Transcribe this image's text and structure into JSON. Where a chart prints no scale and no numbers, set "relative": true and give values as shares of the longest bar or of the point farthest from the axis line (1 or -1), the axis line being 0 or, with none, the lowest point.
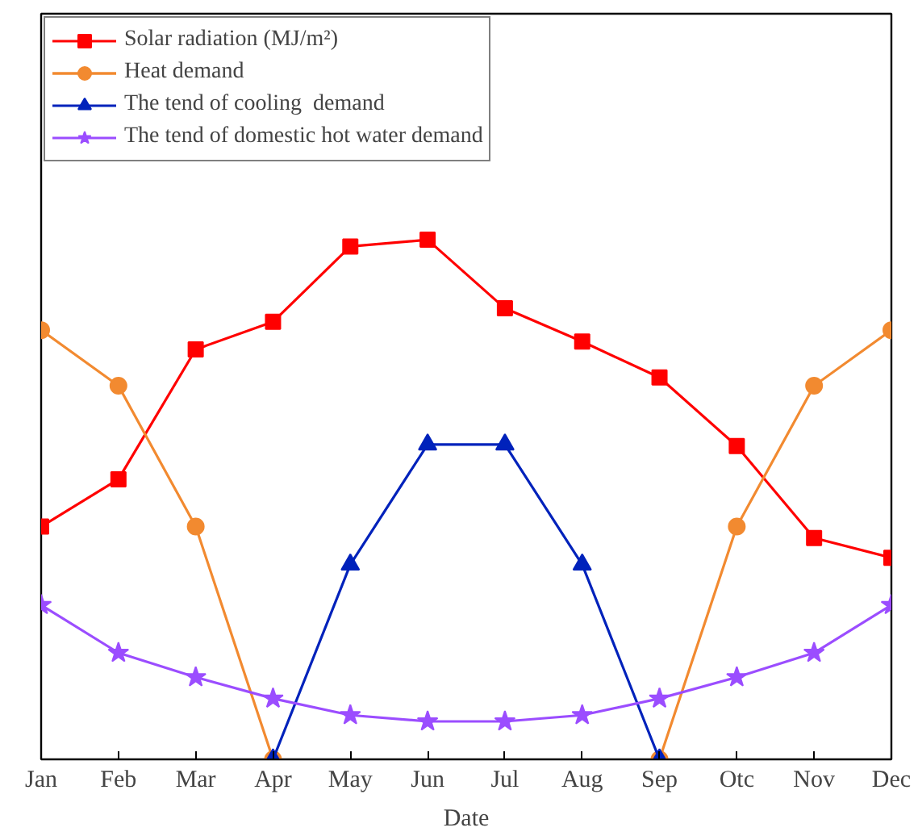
{
  "chart_data": {
    "type": "line",
    "xlabel": "Date",
    "relative": true,
    "legend": "top left",
    "grid": false,
    "categories": [
      "Jan",
      "Feb",
      "Mar",
      "Apr",
      "May",
      "Jun",
      "Jul",
      "Aug",
      "Sep",
      "Otc",
      "Nov",
      "Dec"
    ],
    "series": [
      {
        "name": "Solar radiation (MJ/m²)",
        "color": "#ff0000",
        "marker": "square",
        "values": [
          0.448,
          0.539,
          0.789,
          0.842,
          0.987,
          1,
          0.868,
          0.804,
          0.735,
          0.603,
          0.426,
          0.388
        ]
      },
      {
        "name": "Heat demand",
        "color": "#f28a30",
        "marker": "circle",
        "values": [
          0.826,
          0.719,
          0.448,
          0,
          null,
          null,
          null,
          null,
          0,
          0.448,
          0.719,
          0.826
        ]
      },
      {
        "name": "The tend of cooling  demand",
        "color": "#0022bb",
        "marker": "triangle",
        "values": [
          null,
          null,
          null,
          0,
          0.375,
          0.606,
          0.606,
          0.375,
          0,
          null,
          null,
          null
        ]
      },
      {
        "name": "The tend of domestic hot water demand",
        "color": "#9b4dff",
        "marker": "star",
        "values": [
          0.297,
          0.205,
          0.158,
          0.117,
          0.085,
          0.073,
          0.073,
          0.085,
          0.117,
          0.158,
          0.205,
          0.297
        ]
      }
    ]
  }
}
